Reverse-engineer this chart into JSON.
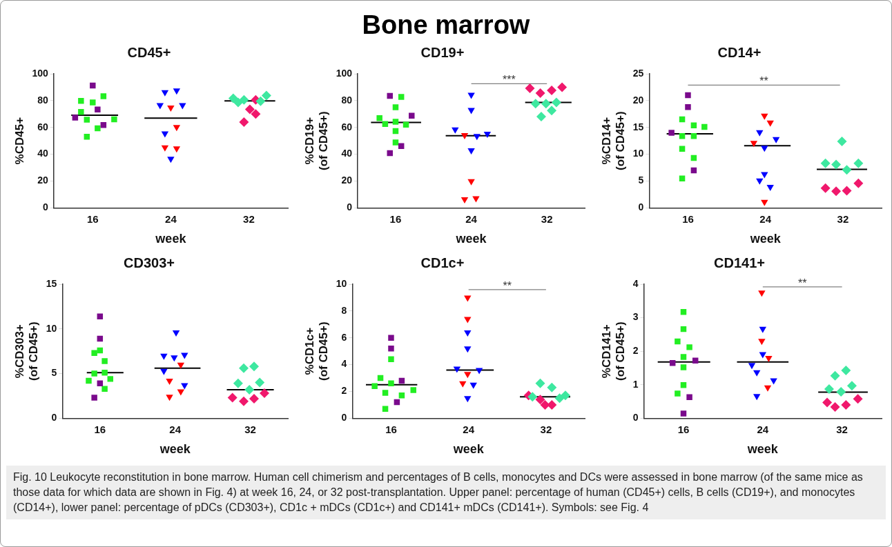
{
  "chart_data": [
    {
      "type": "scatter",
      "title": "CD45+",
      "xlabel": "week",
      "ylabel": "%CD45+",
      "xlim": [
        12,
        36
      ],
      "xticks": [
        16,
        24,
        32
      ],
      "ylim": [
        0,
        100
      ],
      "yticks": [
        0,
        20,
        40,
        60,
        80,
        100
      ],
      "annotations": [
        "Bone marrow"
      ],
      "series": [
        {
          "type": "scatter",
          "marker": "square",
          "color": "#7a0a8c",
          "x": [
            16.0,
            14.2,
            16.5,
            17.1
          ],
          "values": [
            91.2,
            67.3,
            73.4,
            61.8
          ]
        },
        {
          "type": "scatter",
          "marker": "square",
          "color": "#22ee22",
          "x": [
            14.8,
            16.0,
            17.1,
            14.8,
            15.4,
            18.2,
            16.5,
            15.4
          ],
          "values": [
            79.8,
            78.7,
            83.3,
            71.6,
            65.8,
            66.0,
            59.4,
            53.1
          ]
        },
        {
          "type": "line",
          "color": "#000000",
          "x": [
            13.8,
            18.6
          ],
          "values": [
            69.2,
            69.2
          ]
        },
        {
          "type": "scatter",
          "marker": "triangle",
          "color": "#0000ff",
          "x": [
            23.4,
            24.6,
            22.9,
            25.2,
            23.4,
            24.0
          ],
          "values": [
            86.2,
            87.5,
            76.6,
            76.6,
            55.5,
            36.6
          ]
        },
        {
          "type": "scatter",
          "marker": "triangle",
          "color": "#ff0000",
          "x": [
            24.0,
            24.6,
            23.4,
            24.6
          ],
          "values": [
            74.8,
            60.2,
            45.1,
            44.3
          ]
        },
        {
          "type": "line",
          "color": "#000000",
          "x": [
            21.3,
            26.7
          ],
          "values": [
            66.9,
            66.9
          ]
        },
        {
          "type": "scatter",
          "marker": "diamond",
          "color": "#3ee8a0",
          "x": [
            30.4,
            30.9,
            31.5,
            33.2,
            33.8
          ],
          "values": [
            81.7,
            78.7,
            80.6,
            79.5,
            83.8
          ]
        },
        {
          "type": "scatter",
          "marker": "diamond",
          "color": "#f0186c",
          "x": [
            32.7,
            32.1,
            32.7,
            31.5
          ],
          "values": [
            80.6,
            73.5,
            70.1,
            64.0
          ]
        },
        {
          "type": "line",
          "color": "#000000",
          "x": [
            29.5,
            34.7
          ],
          "values": [
            79.8,
            79.8
          ]
        }
      ]
    },
    {
      "type": "scatter",
      "title": "CD19+",
      "xlabel": "week",
      "ylabel": "%CD19+\n(of CD45+)",
      "xlim": [
        12,
        36
      ],
      "xticks": [
        16,
        24,
        32
      ],
      "ylim": [
        0,
        100
      ],
      "yticks": [
        0,
        20,
        40,
        60,
        80,
        100
      ],
      "annotations": [
        {
          "text": "***",
          "y": 92.6
        }
      ],
      "series": [
        {
          "type": "scatter",
          "marker": "square",
          "color": "#7a0a8c",
          "x": [
            15.4,
            17.7,
            16.6,
            15.4
          ],
          "values": [
            83.5,
            68.7,
            46.1,
            40.8
          ]
        },
        {
          "type": "scatter",
          "marker": "square",
          "color": "#22ee22",
          "x": [
            16.6,
            16.0,
            14.3,
            14.9,
            16.0,
            17.1,
            16.0,
            16.0
          ],
          "values": [
            82.8,
            75.1,
            66.9,
            62.6,
            64.2,
            62.1,
            57.3,
            48.8
          ]
        },
        {
          "type": "line",
          "color": "#000000",
          "x": [
            13.4,
            18.7
          ],
          "values": [
            63.7,
            63.7
          ]
        },
        {
          "type": "scatter",
          "marker": "triangle",
          "color": "#0000ff",
          "x": [
            24.0,
            24.0,
            22.3,
            24.6,
            25.7,
            24.0
          ],
          "values": [
            84.3,
            73.0,
            58.4,
            53.6,
            55.2,
            42.9
          ]
        },
        {
          "type": "scatter",
          "marker": "triangle",
          "color": "#ff0000",
          "x": [
            23.3,
            24.0,
            23.3,
            24.5
          ],
          "values": [
            54.2,
            19.9,
            6.4,
            7.1
          ]
        },
        {
          "type": "line",
          "color": "#000000",
          "x": [
            21.3,
            26.6
          ],
          "values": [
            53.8,
            53.8
          ]
        },
        {
          "type": "scatter",
          "marker": "diamond",
          "color": "#f0186c",
          "x": [
            30.2,
            31.3,
            32.5,
            33.6
          ],
          "values": [
            89.2,
            85.6,
            87.6,
            90.0
          ]
        },
        {
          "type": "scatter",
          "marker": "diamond",
          "color": "#3ee8a0",
          "x": [
            30.8,
            31.9,
            33.0,
            32.5,
            31.4
          ],
          "values": [
            77.8,
            77.8,
            78.7,
            72.6,
            68.1
          ]
        },
        {
          "type": "line",
          "color": "#000000",
          "x": [
            29.7,
            34.6
          ],
          "values": [
            78.7,
            78.7
          ]
        },
        {
          "type": "line",
          "color": "#808080",
          "x": [
            24,
            32
          ],
          "values": [
            92.6,
            92.6
          ]
        }
      ]
    },
    {
      "type": "scatter",
      "title": "CD14+",
      "xlabel": "week",
      "ylabel": "%CD14+\n(of CD45+)",
      "xlim": [
        12,
        36
      ],
      "xticks": [
        16,
        24,
        32
      ],
      "ylim": [
        0,
        25
      ],
      "yticks": [
        0,
        5,
        10,
        15,
        20,
        25
      ],
      "annotations": [
        {
          "text": "**",
          "y": 22.9
        }
      ],
      "series": [
        {
          "type": "scatter",
          "marker": "square",
          "color": "#7a0a8c",
          "x": [
            16.0,
            16.0,
            14.3,
            16.6
          ],
          "values": [
            21.0,
            18.8,
            14.0,
            7.0
          ]
        },
        {
          "type": "scatter",
          "marker": "square",
          "color": "#22ee22",
          "x": [
            15.4,
            16.6,
            17.7,
            15.4,
            16.6,
            15.4,
            16.6,
            15.4
          ],
          "values": [
            16.5,
            15.4,
            15.1,
            13.4,
            13.4,
            11.0,
            9.3,
            5.5
          ]
        },
        {
          "type": "line",
          "color": "#000000",
          "x": [
            13.8,
            18.6
          ],
          "values": [
            13.8,
            13.8
          ]
        },
        {
          "type": "scatter",
          "marker": "triangle",
          "color": "#ff0000",
          "x": [
            23.9,
            24.5,
            22.8,
            23.9
          ],
          "values": [
            17.2,
            15.9,
            12.1,
            1.1
          ]
        },
        {
          "type": "scatter",
          "marker": "triangle",
          "color": "#0000ff",
          "x": [
            23.4,
            25.1,
            23.9,
            23.9,
            23.4,
            24.5
          ],
          "values": [
            14.1,
            12.8,
            11.2,
            6.3,
            5.1,
            3.9
          ]
        },
        {
          "type": "line",
          "color": "#000000",
          "x": [
            21.8,
            26.6
          ],
          "values": [
            11.6,
            11.6
          ]
        },
        {
          "type": "scatter",
          "marker": "diamond",
          "color": "#3ee8a0",
          "x": [
            31.9,
            30.2,
            31.3,
            33.6,
            32.4
          ],
          "values": [
            12.4,
            8.3,
            8.1,
            8.3,
            7.1
          ]
        },
        {
          "type": "scatter",
          "marker": "diamond",
          "color": "#f0186c",
          "x": [
            30.2,
            31.3,
            32.4,
            33.6
          ],
          "values": [
            3.7,
            3.1,
            3.2,
            4.6
          ]
        },
        {
          "type": "line",
          "color": "#000000",
          "x": [
            29.3,
            34.5
          ],
          "values": [
            7.2,
            7.2
          ]
        },
        {
          "type": "line",
          "color": "#808080",
          "x": [
            16,
            31.7
          ],
          "values": [
            22.9,
            22.9
          ]
        }
      ]
    },
    {
      "type": "scatter",
      "title": "CD303+",
      "xlabel": "week",
      "ylabel": "%CD303+\n(of CD45+)",
      "xlim": [
        12,
        36
      ],
      "xticks": [
        16,
        24,
        32
      ],
      "ylim": [
        0,
        15
      ],
      "yticks": [
        0,
        5,
        10,
        15
      ],
      "series": [
        {
          "type": "scatter",
          "marker": "square",
          "color": "#7a0a8c",
          "x": [
            16.0,
            16.0,
            16.0,
            15.4
          ],
          "values": [
            11.4,
            8.9,
            3.9,
            2.3
          ]
        },
        {
          "type": "scatter",
          "marker": "square",
          "color": "#22ee22",
          "x": [
            16.0,
            15.4,
            16.5,
            15.4,
            16.5,
            14.8,
            17.1,
            16.5
          ],
          "values": [
            7.6,
            7.3,
            6.4,
            5.0,
            5.1,
            4.2,
            4.4,
            3.3
          ]
        },
        {
          "type": "line",
          "color": "#000000",
          "x": [
            14.6,
            18.5
          ],
          "values": [
            5.1,
            5.1
          ]
        },
        {
          "type": "scatter",
          "marker": "triangle",
          "color": "#0000ff",
          "x": [
            24.1,
            22.8,
            23.9,
            25.0,
            22.8,
            25.0
          ],
          "values": [
            9.6,
            7.0,
            6.8,
            7.1,
            5.3,
            3.7
          ]
        },
        {
          "type": "scatter",
          "marker": "triangle",
          "color": "#ff0000",
          "x": [
            24.6,
            23.4,
            24.6,
            23.4
          ],
          "values": [
            6.0,
            4.2,
            3.0,
            2.4
          ]
        },
        {
          "type": "line",
          "color": "#000000",
          "x": [
            21.8,
            26.7
          ],
          "values": [
            5.6,
            5.6
          ]
        },
        {
          "type": "scatter",
          "marker": "diamond",
          "color": "#3ee8a0",
          "x": [
            31.3,
            32.4,
            30.7,
            33.0,
            31.9
          ],
          "values": [
            5.6,
            5.8,
            3.9,
            4.0,
            3.2
          ]
        },
        {
          "type": "scatter",
          "marker": "diamond",
          "color": "#f0186c",
          "x": [
            30.1,
            31.3,
            32.4,
            33.5
          ],
          "values": [
            2.3,
            1.9,
            2.2,
            2.8
          ]
        },
        {
          "type": "line",
          "color": "#000000",
          "x": [
            29.5,
            34.5
          ],
          "values": [
            3.2,
            3.2
          ]
        }
      ]
    },
    {
      "type": "scatter",
      "title": "CD1c+",
      "xlabel": "week",
      "ylabel": "%CD1c+\n(of CD45+)",
      "xlim": [
        12,
        36
      ],
      "xticks": [
        16,
        24,
        32
      ],
      "ylim": [
        0,
        10
      ],
      "yticks": [
        0,
        2,
        4,
        6,
        8,
        10
      ],
      "annotations": [
        {
          "text": "**",
          "y": 9.6
        }
      ],
      "series": [
        {
          "type": "scatter",
          "marker": "square",
          "color": "#7a0a8c",
          "x": [
            16.0,
            16.0,
            17.1,
            16.6
          ],
          "values": [
            6.0,
            5.2,
            2.8,
            1.2
          ]
        },
        {
          "type": "scatter",
          "marker": "square",
          "color": "#22ee22",
          "x": [
            16.0,
            14.9,
            16.0,
            14.3,
            15.4,
            17.1,
            18.3,
            15.4
          ],
          "values": [
            4.4,
            3.0,
            2.6,
            2.4,
            1.9,
            1.7,
            2.1,
            0.7
          ]
        },
        {
          "type": "line",
          "color": "#000000",
          "x": [
            13.4,
            18.7
          ],
          "values": [
            2.5,
            2.5
          ]
        },
        {
          "type": "scatter",
          "marker": "triangle",
          "color": "#ff0000",
          "x": [
            23.9,
            23.9,
            23.9,
            23.4
          ],
          "values": [
            9.0,
            7.4,
            3.3,
            2.6
          ]
        },
        {
          "type": "scatter",
          "marker": "triangle",
          "color": "#0000ff",
          "x": [
            23.9,
            23.9,
            22.8,
            25.1,
            24.5,
            23.9
          ],
          "values": [
            6.4,
            5.2,
            3.7,
            3.6,
            2.5,
            1.5
          ]
        },
        {
          "type": "line",
          "color": "#000000",
          "x": [
            21.7,
            26.6
          ],
          "values": [
            3.6,
            3.6
          ]
        },
        {
          "type": "scatter",
          "marker": "diamond",
          "color": "#3ee8a0",
          "x": [
            31.4,
            32.6,
            30.6,
            33.4,
            34.0
          ],
          "values": [
            2.6,
            2.3,
            1.6,
            1.5,
            1.7
          ]
        },
        {
          "type": "scatter",
          "marker": "diamond",
          "color": "#f0186c",
          "x": [
            30.2,
            31.4,
            31.9,
            32.6
          ],
          "values": [
            1.7,
            1.4,
            1.0,
            1.0
          ]
        },
        {
          "type": "line",
          "color": "#000000",
          "x": [
            29.3,
            34.5
          ],
          "values": [
            1.6,
            1.6
          ]
        },
        {
          "type": "line",
          "color": "#808080",
          "x": [
            24,
            32
          ],
          "values": [
            9.6,
            9.6
          ]
        }
      ]
    },
    {
      "type": "scatter",
      "title": "CD141+",
      "xlabel": "week",
      "ylabel": "%CD141+\n(of CD45+)",
      "xlim": [
        12,
        36
      ],
      "xticks": [
        16,
        24,
        32
      ],
      "ylim": [
        0,
        4
      ],
      "yticks": [
        0,
        1,
        2,
        3,
        4
      ],
      "annotations": [
        {
          "text": "**",
          "y": 3.92
        },
        "Fig. 10 Leukocyte reconstitution in bone marrow. Human cell chimerism and percentages of B cells, monocytes and DCs were assessed in bone marrow (of the same mice as those data for which data are shown in Fig. 4) at week 16, 24, or 32 post-transplantation. Upper panel: percentage of human (CD45+) cells, B cells (CD19+), and monocytes (CD14+), lower panel: percentage of pDCs (CD303+), CD1c + mDCs (CD1c+) and CD141+ mDCs (CD141+). Symbols: see Fig. 4"
      ],
      "series": [
        {
          "type": "scatter",
          "marker": "square",
          "color": "#22ee22",
          "x": [
            16.0,
            16.0,
            15.4,
            16.6,
            16.0,
            16.0,
            16.0,
            15.4
          ],
          "values": [
            3.17,
            2.66,
            2.29,
            2.12,
            1.83,
            1.52,
            0.99,
            0.74
          ]
        },
        {
          "type": "scatter",
          "marker": "square",
          "color": "#7a0a8c",
          "x": [
            14.9,
            17.2,
            16.6,
            16.0
          ],
          "values": [
            1.65,
            1.72,
            0.63,
            0.14
          ]
        },
        {
          "type": "line",
          "color": "#000000",
          "x": [
            13.4,
            18.7
          ],
          "values": [
            1.68,
            1.68
          ]
        },
        {
          "type": "scatter",
          "marker": "triangle",
          "color": "#ff0000",
          "x": [
            23.9,
            23.9,
            24.6,
            24.5
          ],
          "values": [
            3.75,
            2.31,
            1.8,
            0.92
          ]
        },
        {
          "type": "scatter",
          "marker": "triangle",
          "color": "#0000ff",
          "x": [
            24.0,
            24.0,
            22.9,
            23.4,
            25.1,
            23.4
          ],
          "values": [
            2.67,
            1.91,
            1.59,
            1.37,
            1.13,
            0.66
          ]
        },
        {
          "type": "line",
          "color": "#000000",
          "x": [
            21.4,
            26.6
          ],
          "values": [
            1.68,
            1.68
          ]
        },
        {
          "type": "scatter",
          "marker": "diamond",
          "color": "#3ee8a0",
          "x": [
            32.4,
            31.3,
            33.0,
            30.7,
            31.9
          ],
          "values": [
            1.43,
            1.27,
            0.97,
            0.87,
            0.79
          ]
        },
        {
          "type": "scatter",
          "marker": "diamond",
          "color": "#f0186c",
          "x": [
            30.5,
            31.3,
            32.4,
            33.6
          ],
          "values": [
            0.47,
            0.34,
            0.4,
            0.58
          ]
        },
        {
          "type": "line",
          "color": "#000000",
          "x": [
            29.6,
            34.6
          ],
          "values": [
            0.78,
            0.78
          ]
        },
        {
          "type": "line",
          "color": "#808080",
          "x": [
            24,
            32
          ],
          "values": [
            3.92,
            3.92
          ]
        }
      ]
    }
  ]
}
